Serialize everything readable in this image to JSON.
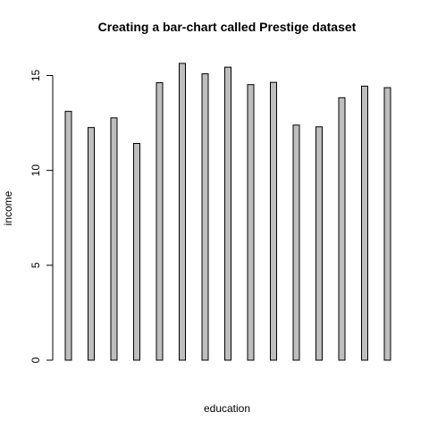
{
  "chart_data": {
    "type": "bar",
    "title": "Creating a bar-chart called Prestige dataset",
    "xlabel": "education",
    "ylabel": "income",
    "ylim": [
      0,
      16.2
    ],
    "yticks": [
      0,
      5,
      10,
      15
    ],
    "grid": false,
    "legend": "none",
    "bar_color": "#bebebe",
    "values": [
      13.11,
      12.26,
      12.77,
      11.42,
      14.62,
      15.64,
      15.09,
      15.44,
      14.52,
      14.64,
      12.39,
      12.3,
      13.83,
      14.44,
      14.36
    ]
  }
}
